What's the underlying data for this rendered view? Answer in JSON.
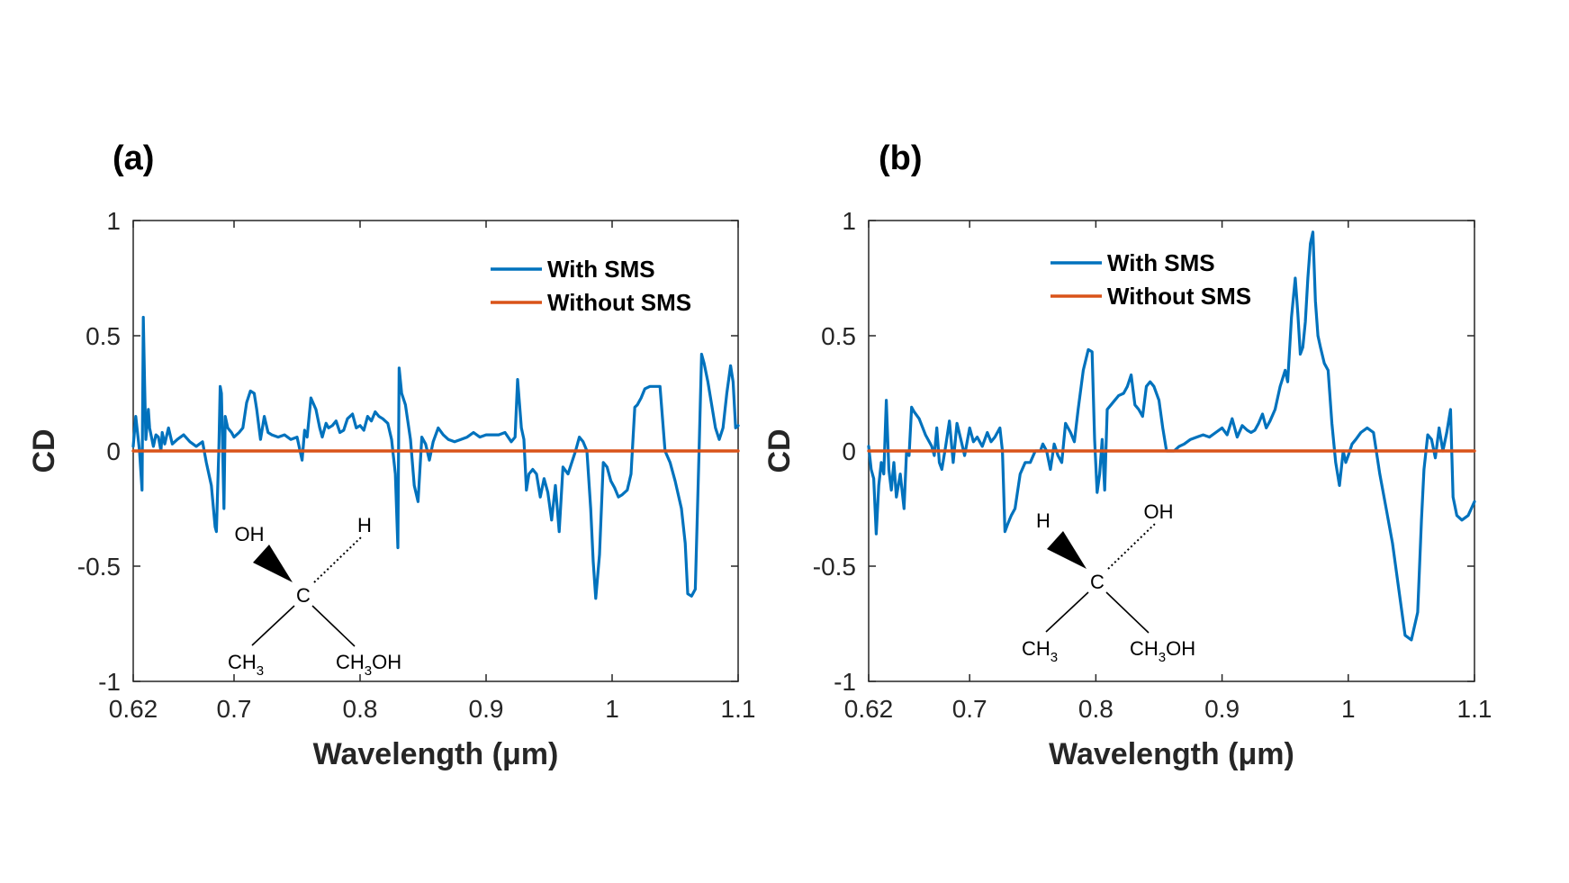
{
  "chart_data": [
    {
      "panel_label": "(a)",
      "type": "line",
      "xlabel": "Wavelength (μm)",
      "ylabel": "CD",
      "xlim": [
        0.62,
        1.1
      ],
      "ylim": [
        -1,
        1
      ],
      "x_ticks": [
        0.62,
        0.7,
        0.8,
        0.9,
        1,
        1.1
      ],
      "x_tick_labels": [
        "0.62",
        "0.7",
        "0.8",
        "0.9",
        "1",
        "1.1"
      ],
      "y_ticks": [
        1,
        0.5,
        0,
        -0.5,
        -1
      ],
      "y_tick_labels": [
        "1",
        "0.5",
        "0",
        "-0.5",
        "-1"
      ],
      "legend_position": "top-right",
      "molecule": {
        "center": "C",
        "wedge_group": "OH",
        "dashed_group": "H",
        "lower_left": {
          "base": "CH",
          "sub": "3",
          "tail": ""
        },
        "lower_right": {
          "base": "CH",
          "sub": "3",
          "tail": "OH"
        }
      },
      "series": [
        {
          "name": "With SMS",
          "color": "#0072BD",
          "x": [
            0.62,
            0.622,
            0.625,
            0.627,
            0.628,
            0.629,
            0.63,
            0.632,
            0.633,
            0.636,
            0.638,
            0.64,
            0.642,
            0.643,
            0.645,
            0.648,
            0.651,
            0.655,
            0.66,
            0.665,
            0.67,
            0.675,
            0.678,
            0.682,
            0.685,
            0.686,
            0.688,
            0.689,
            0.69,
            0.692,
            0.693,
            0.695,
            0.698,
            0.7,
            0.704,
            0.707,
            0.71,
            0.713,
            0.716,
            0.718,
            0.721,
            0.724,
            0.727,
            0.73,
            0.735,
            0.74,
            0.745,
            0.75,
            0.754,
            0.756,
            0.758,
            0.761,
            0.765,
            0.768,
            0.77,
            0.773,
            0.775,
            0.778,
            0.781,
            0.784,
            0.787,
            0.79,
            0.794,
            0.797,
            0.8,
            0.803,
            0.806,
            0.809,
            0.812,
            0.815,
            0.818,
            0.822,
            0.825,
            0.828,
            0.83,
            0.831,
            0.833,
            0.836,
            0.84,
            0.843,
            0.846,
            0.849,
            0.852,
            0.855,
            0.858,
            0.862,
            0.866,
            0.87,
            0.875,
            0.88,
            0.885,
            0.89,
            0.895,
            0.9,
            0.905,
            0.91,
            0.915,
            0.92,
            0.923,
            0.925,
            0.928,
            0.93,
            0.932,
            0.934,
            0.937,
            0.94,
            0.943,
            0.946,
            0.949,
            0.952,
            0.955,
            0.958,
            0.961,
            0.965,
            0.968,
            0.971,
            0.974,
            0.977,
            0.98,
            0.983,
            0.985,
            0.987,
            0.99,
            0.993,
            0.996,
            0.999,
            1.002,
            1.005,
            1.008,
            1.012,
            1.015,
            1.018,
            1.02,
            1.023,
            1.026,
            1.03,
            1.034,
            1.038,
            1.042,
            1.046,
            1.05,
            1.055,
            1.058,
            1.06,
            1.063,
            1.066,
            1.069,
            1.071,
            1.073,
            1.076,
            1.079,
            1.082,
            1.085,
            1.088,
            1.091,
            1.094,
            1.096,
            1.098,
            1.1
          ],
          "values": [
            0.02,
            0.15,
            0.0,
            -0.17,
            0.58,
            0.3,
            0.05,
            0.18,
            0.1,
            0.02,
            0.07,
            0.06,
            0.0,
            0.08,
            0.03,
            0.1,
            0.03,
            0.05,
            0.07,
            0.04,
            0.02,
            0.04,
            -0.05,
            -0.15,
            -0.33,
            -0.35,
            0.02,
            0.28,
            0.25,
            -0.25,
            0.15,
            0.1,
            0.08,
            0.06,
            0.08,
            0.1,
            0.21,
            0.26,
            0.25,
            0.18,
            0.05,
            0.15,
            0.08,
            0.07,
            0.06,
            0.07,
            0.05,
            0.06,
            -0.04,
            0.09,
            0.06,
            0.23,
            0.18,
            0.1,
            0.06,
            0.12,
            0.1,
            0.11,
            0.13,
            0.08,
            0.09,
            0.14,
            0.16,
            0.1,
            0.11,
            0.09,
            0.15,
            0.13,
            0.17,
            0.15,
            0.14,
            0.12,
            0.05,
            -0.1,
            -0.42,
            0.36,
            0.25,
            0.2,
            0.05,
            -0.15,
            -0.22,
            0.06,
            0.03,
            -0.04,
            0.04,
            0.1,
            0.07,
            0.05,
            0.04,
            0.05,
            0.06,
            0.08,
            0.06,
            0.07,
            0.07,
            0.07,
            0.08,
            0.04,
            0.06,
            0.31,
            0.1,
            0.05,
            -0.17,
            -0.1,
            -0.08,
            -0.1,
            -0.2,
            -0.12,
            -0.18,
            -0.3,
            -0.15,
            -0.35,
            -0.07,
            -0.1,
            -0.05,
            0.0,
            0.06,
            0.04,
            0.0,
            -0.25,
            -0.48,
            -0.64,
            -0.45,
            -0.05,
            -0.07,
            -0.13,
            -0.16,
            -0.2,
            -0.19,
            -0.17,
            -0.1,
            0.19,
            0.2,
            0.23,
            0.27,
            0.28,
            0.28,
            0.28,
            0.0,
            -0.05,
            -0.13,
            -0.25,
            -0.4,
            -0.62,
            -0.63,
            -0.6,
            0.0,
            0.42,
            0.38,
            0.3,
            0.2,
            0.1,
            0.05,
            0.1,
            0.25,
            0.37,
            0.3,
            0.1,
            0.11
          ]
        },
        {
          "name": "Without SMS",
          "color": "#D95319",
          "x": [
            0.62,
            1.1
          ],
          "values": [
            0,
            0
          ]
        }
      ]
    },
    {
      "panel_label": "(b)",
      "type": "line",
      "xlabel": "Wavelength (μm)",
      "ylabel": "CD",
      "xlim": [
        0.62,
        1.1
      ],
      "ylim": [
        -1,
        1
      ],
      "x_ticks": [
        0.62,
        0.7,
        0.8,
        0.9,
        1,
        1.1
      ],
      "x_tick_labels": [
        "0.62",
        "0.7",
        "0.8",
        "0.9",
        "1",
        "1.1"
      ],
      "y_ticks": [
        1,
        0.5,
        0,
        -0.5,
        -1
      ],
      "y_tick_labels": [
        "1",
        "0.5",
        "0",
        "-0.5",
        "-1"
      ],
      "legend_position": "top-center",
      "molecule": {
        "center": "C",
        "wedge_group": "H",
        "dashed_group": "OH",
        "lower_left": {
          "base": "CH",
          "sub": "3",
          "tail": ""
        },
        "lower_right": {
          "base": "CH",
          "sub": "3",
          "tail": "OH"
        }
      },
      "series": [
        {
          "name": "With SMS",
          "color": "#0072BD",
          "x": [
            0.62,
            0.622,
            0.624,
            0.626,
            0.628,
            0.63,
            0.632,
            0.634,
            0.636,
            0.638,
            0.64,
            0.642,
            0.645,
            0.648,
            0.65,
            0.652,
            0.654,
            0.656,
            0.66,
            0.665,
            0.67,
            0.672,
            0.674,
            0.676,
            0.678,
            0.681,
            0.684,
            0.687,
            0.69,
            0.693,
            0.696,
            0.7,
            0.703,
            0.706,
            0.71,
            0.714,
            0.717,
            0.72,
            0.724,
            0.726,
            0.728,
            0.73,
            0.733,
            0.736,
            0.74,
            0.744,
            0.748,
            0.752,
            0.756,
            0.758,
            0.761,
            0.764,
            0.767,
            0.77,
            0.773,
            0.776,
            0.78,
            0.783,
            0.786,
            0.79,
            0.794,
            0.797,
            0.799,
            0.801,
            0.803,
            0.805,
            0.807,
            0.809,
            0.812,
            0.815,
            0.818,
            0.822,
            0.825,
            0.828,
            0.831,
            0.834,
            0.837,
            0.84,
            0.843,
            0.846,
            0.85,
            0.853,
            0.856,
            0.859,
            0.862,
            0.866,
            0.87,
            0.875,
            0.88,
            0.885,
            0.89,
            0.895,
            0.9,
            0.904,
            0.908,
            0.912,
            0.916,
            0.92,
            0.923,
            0.926,
            0.929,
            0.932,
            0.935,
            0.938,
            0.942,
            0.946,
            0.95,
            0.952,
            0.955,
            0.958,
            0.96,
            0.962,
            0.964,
            0.966,
            0.968,
            0.97,
            0.972,
            0.974,
            0.976,
            0.978,
            0.981,
            0.984,
            0.987,
            0.99,
            0.993,
            0.996,
            0.998,
            1.0,
            1.003,
            1.006,
            1.01,
            1.015,
            1.02,
            1.025,
            1.03,
            1.035,
            1.04,
            1.045,
            1.05,
            1.055,
            1.058,
            1.06,
            1.063,
            1.066,
            1.069,
            1.072,
            1.075,
            1.078,
            1.081,
            1.083,
            1.086,
            1.09,
            1.095,
            1.1
          ],
          "values": [
            0.02,
            -0.08,
            -0.12,
            -0.36,
            -0.15,
            -0.05,
            -0.1,
            0.22,
            -0.08,
            -0.17,
            -0.05,
            -0.2,
            -0.1,
            -0.25,
            0.0,
            -0.02,
            0.19,
            0.17,
            0.14,
            0.07,
            0.02,
            -0.02,
            0.1,
            -0.05,
            -0.08,
            0.02,
            0.13,
            -0.05,
            0.12,
            0.05,
            -0.02,
            0.1,
            0.04,
            0.06,
            0.02,
            0.08,
            0.04,
            0.06,
            0.1,
            0.0,
            -0.35,
            -0.32,
            -0.28,
            -0.25,
            -0.1,
            -0.05,
            -0.05,
            0.0,
            0.0,
            0.03,
            0.0,
            -0.08,
            0.03,
            -0.02,
            -0.05,
            0.12,
            0.08,
            0.04,
            0.18,
            0.35,
            0.44,
            0.43,
            0.05,
            -0.18,
            -0.1,
            0.05,
            -0.17,
            0.18,
            0.2,
            0.22,
            0.24,
            0.25,
            0.28,
            0.33,
            0.2,
            0.18,
            0.15,
            0.28,
            0.3,
            0.28,
            0.22,
            0.1,
            0.0,
            0.0,
            0.0,
            0.02,
            0.03,
            0.05,
            0.06,
            0.07,
            0.06,
            0.08,
            0.1,
            0.07,
            0.14,
            0.06,
            0.11,
            0.09,
            0.08,
            0.09,
            0.12,
            0.16,
            0.1,
            0.13,
            0.18,
            0.28,
            0.35,
            0.3,
            0.58,
            0.75,
            0.6,
            0.42,
            0.45,
            0.56,
            0.75,
            0.9,
            0.95,
            0.65,
            0.5,
            0.45,
            0.38,
            0.35,
            0.12,
            -0.05,
            -0.15,
            0.0,
            -0.05,
            -0.02,
            0.03,
            0.05,
            0.08,
            0.1,
            0.08,
            -0.1,
            -0.25,
            -0.4,
            -0.6,
            -0.8,
            -0.82,
            -0.7,
            -0.3,
            -0.08,
            0.07,
            0.05,
            -0.03,
            0.1,
            0.0,
            0.08,
            0.18,
            -0.2,
            -0.28,
            -0.3,
            -0.28,
            -0.22
          ]
        },
        {
          "name": "Without SMS",
          "color": "#D95319",
          "x": [
            0.62,
            1.1
          ],
          "values": [
            0,
            0
          ]
        }
      ]
    }
  ]
}
